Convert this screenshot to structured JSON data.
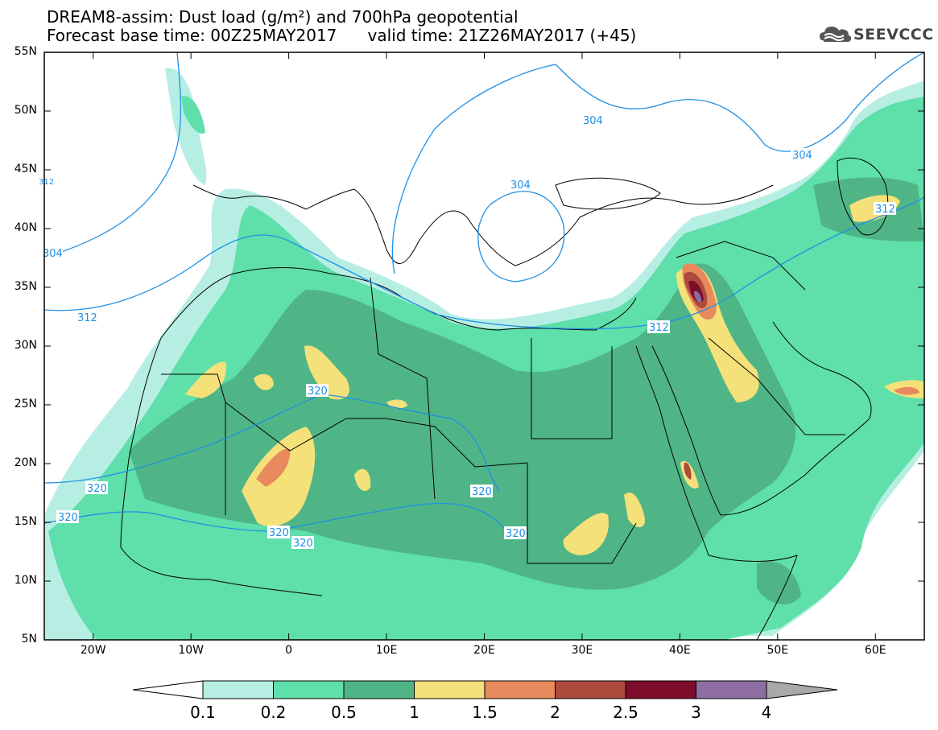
{
  "title": {
    "line1": "DREAM8-assim: Dust load (g/m²) and 700hPa geopotential",
    "line2": "Forecast base time: 00Z25MAY2017      valid time: 21Z26MAY2017 (+45)"
  },
  "logo": {
    "text": "SEEVCCC",
    "icon": "cloud-icon"
  },
  "map": {
    "lat_labels": [
      "55N",
      "50N",
      "45N",
      "40N",
      "35N",
      "30N",
      "25N",
      "20N",
      "15N",
      "10N",
      "5N"
    ],
    "lon_labels": [
      "20W",
      "10W",
      "0",
      "10E",
      "20E",
      "30E",
      "40E",
      "50E",
      "60E"
    ],
    "lat_range": [
      5,
      55
    ],
    "lon_range": [
      -25,
      65
    ],
    "contour_labels": [
      "304",
      "304",
      "304",
      "304",
      "312",
      "312",
      "312",
      "312",
      "320",
      "320",
      "320",
      "320",
      "320",
      "320",
      "320"
    ]
  },
  "colorbar": {
    "levels": [
      "0.1",
      "0.2",
      "0.5",
      "1",
      "1.5",
      "2",
      "2.5",
      "3",
      "4"
    ],
    "colors": [
      "#b7eee4",
      "#5fdfaa",
      "#4fb586",
      "#f5e17a",
      "#e8895e",
      "#ac4a3e",
      "#7d0c2a",
      "#8e6ea2",
      "#a9a9a9"
    ]
  }
}
